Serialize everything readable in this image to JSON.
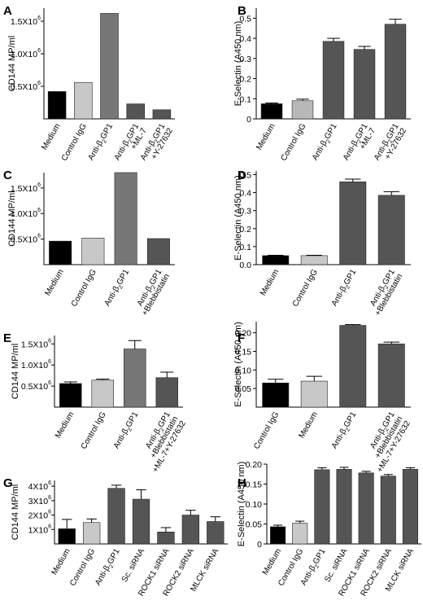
{
  "figure": {
    "background": "#ffffff"
  },
  "chart_data": [
    {
      "panel": "A",
      "type": "bar",
      "ylabel": "CD144 MP/ml",
      "ylim": [
        0,
        1700000
      ],
      "yticks": [
        {
          "label": "0.5X10",
          "exp": "6",
          "value": 500000
        },
        {
          "label": "1.0X10",
          "exp": "6",
          "value": 1000000
        },
        {
          "label": "1.5X10",
          "exp": "6",
          "value": 1500000
        }
      ],
      "categories": [
        {
          "lines": [
            "Medium"
          ]
        },
        {
          "lines": [
            "Control IgG"
          ]
        },
        {
          "lines": [
            "Anti-β2GP1"
          ]
        },
        {
          "lines": [
            "Anti-β2GP1",
            "+ML-7"
          ]
        },
        {
          "lines": [
            "Anti-β2GP1",
            "+Y-27632"
          ]
        }
      ],
      "values": [
        420000,
        560000,
        1620000,
        230000,
        140000
      ],
      "errors": null,
      "colors": [
        "#000000",
        "#c8c8c8",
        "#777777",
        "#555555",
        "#555555"
      ]
    },
    {
      "panel": "B",
      "type": "bar",
      "ylabel": "E-Selectin (A450 nm)",
      "ylim": [
        0,
        0.55
      ],
      "yticks": [
        {
          "label": "0",
          "value": 0
        },
        {
          "label": "0.1",
          "value": 0.1
        },
        {
          "label": "0.2",
          "value": 0.2
        },
        {
          "label": "0.3",
          "value": 0.3
        },
        {
          "label": "0.4",
          "value": 0.4
        },
        {
          "label": "0.5",
          "value": 0.5
        }
      ],
      "categories": [
        {
          "lines": [
            "Medium"
          ]
        },
        {
          "lines": [
            "Control IgG"
          ]
        },
        {
          "lines": [
            "Anti-β2GP1"
          ]
        },
        {
          "lines": [
            "Anti-β2GP1",
            "+ML-7"
          ]
        },
        {
          "lines": [
            "Anti-β2GP1",
            "+Y-27632"
          ]
        }
      ],
      "values": [
        0.075,
        0.09,
        0.385,
        0.345,
        0.47
      ],
      "errors": [
        0.004,
        0.008,
        0.015,
        0.015,
        0.025
      ],
      "colors": [
        "#000000",
        "#b8b8b8",
        "#555555",
        "#555555",
        "#555555"
      ]
    },
    {
      "panel": "C",
      "type": "bar",
      "ylabel": "CD144 MP/ml",
      "ylim": [
        0,
        1800000
      ],
      "yticks": [
        {
          "label": "0.5X10",
          "exp": "6",
          "value": 500000
        },
        {
          "label": "1.0X10",
          "exp": "6",
          "value": 1000000
        },
        {
          "label": "1.5X10",
          "exp": "6",
          "value": 1500000
        }
      ],
      "categories": [
        {
          "lines": [
            "Medium"
          ]
        },
        {
          "lines": [
            "Control IgG"
          ]
        },
        {
          "lines": [
            "Anti-β2GP1"
          ]
        },
        {
          "lines": [
            "Anti-β2GP1",
            "+Blebbistatin"
          ]
        }
      ],
      "values": [
        460000,
        520000,
        1800000,
        510000
      ],
      "errors": null,
      "colors": [
        "#000000",
        "#c8c8c8",
        "#777777",
        "#555555"
      ]
    },
    {
      "panel": "D",
      "type": "bar",
      "ylabel": "E-Selectin (A450 nm)",
      "ylim": [
        0,
        0.52
      ],
      "yticks": [
        {
          "label": "0.0",
          "value": 0
        },
        {
          "label": "0.1",
          "value": 0.1
        },
        {
          "label": "0.2",
          "value": 0.2
        },
        {
          "label": "0.3",
          "value": 0.3
        },
        {
          "label": "0.4",
          "value": 0.4
        },
        {
          "label": "0.5",
          "value": 0.5
        }
      ],
      "categories": [
        {
          "lines": [
            "Medium"
          ]
        },
        {
          "lines": [
            "Control IgG"
          ]
        },
        {
          "lines": [
            "Anti-β2GP1"
          ]
        },
        {
          "lines": [
            "Anti-β2GP1",
            "+Blebbistatin"
          ]
        }
      ],
      "values": [
        0.05,
        0.05,
        0.46,
        0.385
      ],
      "errors": [
        0.002,
        0.002,
        0.015,
        0.02
      ],
      "colors": [
        "#000000",
        "#c8c8c8",
        "#555555",
        "#555555"
      ]
    },
    {
      "panel": "E",
      "type": "bar",
      "ylabel": "CD144 MP/ml",
      "ylim": [
        0,
        1700000
      ],
      "yticks": [
        {
          "label": "0.5X10",
          "exp": "6",
          "value": 500000
        },
        {
          "label": "1.0X10",
          "exp": "6",
          "value": 1000000
        },
        {
          "label": "1.5X10",
          "exp": "6",
          "value": 1500000
        }
      ],
      "categories": [
        {
          "lines": [
            "Medium"
          ]
        },
        {
          "lines": [
            "Control IgG"
          ]
        },
        {
          "lines": [
            "Anti-β2GP1"
          ]
        },
        {
          "lines": [
            "Anti-β2GP1",
            "+Blebbistatin",
            "+ML-7+Y-27632"
          ]
        }
      ],
      "values": [
        560000,
        640000,
        1380000,
        700000
      ],
      "errors": [
        40000,
        25000,
        200000,
        130000
      ],
      "colors": [
        "#000000",
        "#c8c8c8",
        "#777777",
        "#555555"
      ]
    },
    {
      "panel": "F",
      "type": "bar",
      "ylabel": "E-Selectin (A450 nm)",
      "ylim": [
        0,
        0.23
      ],
      "yticks": [
        {
          "label": "0.05",
          "value": 0.05
        },
        {
          "label": "0.10",
          "value": 0.1
        },
        {
          "label": "0.15",
          "value": 0.15
        },
        {
          "label": "0.20",
          "value": 0.2
        }
      ],
      "categories": [
        {
          "lines": [
            "Control IgG"
          ]
        },
        {
          "lines": [
            "Medium"
          ]
        },
        {
          "lines": [
            "Anti-β2GP1"
          ]
        },
        {
          "lines": [
            "Anti-β2GP1",
            "+Blebbistatin",
            "+ML-7+Y-27632"
          ]
        }
      ],
      "values": [
        0.065,
        0.07,
        0.22,
        0.17
      ],
      "errors": [
        0.01,
        0.013,
        0.002,
        0.005
      ],
      "colors": [
        "#000000",
        "#c8c8c8",
        "#555555",
        "#555555"
      ]
    },
    {
      "panel": "G",
      "type": "bar",
      "ylabel": "CD144 MP/ml",
      "ylim": [
        0,
        4400000
      ],
      "yticks": [
        {
          "label": "1X10",
          "exp": "6",
          "value": 1000000
        },
        {
          "label": "2X10",
          "exp": "6",
          "value": 2000000
        },
        {
          "label": "3X10",
          "exp": "6",
          "value": 3000000
        },
        {
          "label": "4X10",
          "exp": "6",
          "value": 4000000
        }
      ],
      "categories": [
        {
          "lines": [
            "Medium"
          ]
        },
        {
          "lines": [
            "Control IgG"
          ]
        },
        {
          "lines": [
            "Anti-β2GP1"
          ]
        },
        {
          "lines": [
            "Sc. siRNA"
          ]
        },
        {
          "lines": [
            "ROCK1 siRNA"
          ]
        },
        {
          "lines": [
            "ROCK2 siRNA"
          ]
        },
        {
          "lines": [
            "MLCK siRNA"
          ]
        }
      ],
      "values": [
        1050000,
        1480000,
        3850000,
        3100000,
        830000,
        2000000,
        1550000
      ],
      "errors": [
        650000,
        250000,
        220000,
        650000,
        300000,
        330000,
        330000
      ],
      "colors": [
        "#000000",
        "#c8c8c8",
        "#555555",
        "#555555",
        "#555555",
        "#555555",
        "#555555"
      ]
    },
    {
      "panel": "H",
      "type": "bar",
      "ylabel": "E-Selectin (A450 nm)",
      "ylim": [
        0,
        0.2
      ],
      "yticks": [
        {
          "label": "0",
          "value": 0
        },
        {
          "label": "0.05",
          "value": 0.05
        },
        {
          "label": "0.10",
          "value": 0.1
        },
        {
          "label": "0.15",
          "value": 0.15
        },
        {
          "label": "0.20",
          "value": 0.2
        }
      ],
      "categories": [
        {
          "lines": [
            "Medium"
          ]
        },
        {
          "lines": [
            "Control IgG"
          ]
        },
        {
          "lines": [
            "Anti-β2GP1"
          ]
        },
        {
          "lines": [
            "Sc. siRNA"
          ]
        },
        {
          "lines": [
            "ROCK1 siRNA"
          ]
        },
        {
          "lines": [
            "ROCK2 siRNA"
          ]
        },
        {
          "lines": [
            "MLCK siRNA"
          ]
        }
      ],
      "values": [
        0.043,
        0.052,
        0.186,
        0.187,
        0.178,
        0.17,
        0.187
      ],
      "errors": [
        0.004,
        0.005,
        0.005,
        0.005,
        0.004,
        0.004,
        0.004
      ],
      "colors": [
        "#000000",
        "#c8c8c8",
        "#555555",
        "#555555",
        "#555555",
        "#555555",
        "#555555"
      ]
    }
  ]
}
